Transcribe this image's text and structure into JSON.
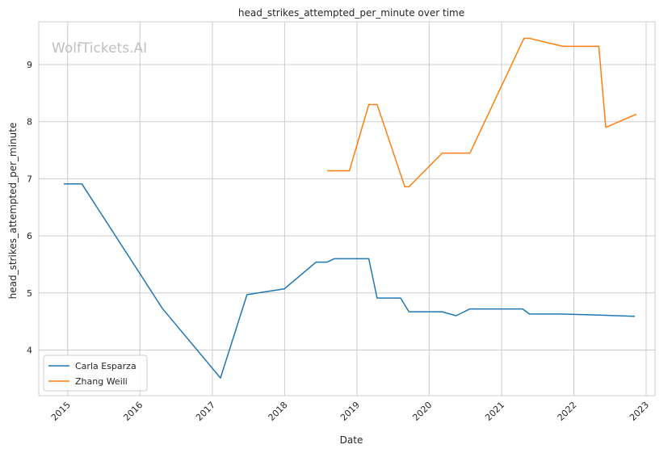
{
  "watermark": "WolfTickets.AI",
  "chart_data": {
    "type": "line",
    "title": "head_strikes_attempted_per_minute over time",
    "xlabel": "Date",
    "ylabel": "head_strikes_attempted_per_minute",
    "x_ticks": [
      "2015",
      "2016",
      "2017",
      "2018",
      "2019",
      "2020",
      "2021",
      "2022",
      "2023"
    ],
    "y_ticks": [
      4,
      5,
      6,
      7,
      8,
      9
    ],
    "xlim": [
      "2014-08-08",
      "2023-02-15"
    ],
    "ylim": [
      3.2,
      9.75
    ],
    "grid": true,
    "legend_position": "lower-left",
    "series": [
      {
        "name": "Carla Esparza",
        "color": "#1f77b4",
        "x": [
          "2014-12-12",
          "2015-03-14",
          "2016-04-23",
          "2017-02-11",
          "2017-06-25",
          "2017-12-30",
          "2018-06-09",
          "2018-08-04",
          "2018-09-08",
          "2019-03-02",
          "2019-04-13",
          "2019-08-10",
          "2019-09-21",
          "2020-03-07",
          "2020-05-16",
          "2020-07-25",
          "2021-04-17",
          "2021-05-22",
          "2021-10-30",
          "2022-05-14",
          "2022-11-05"
        ],
        "values": [
          6.91,
          6.91,
          4.73,
          3.51,
          4.97,
          5.07,
          5.54,
          5.54,
          5.6,
          5.6,
          4.91,
          4.91,
          4.67,
          4.67,
          4.6,
          4.72,
          4.72,
          4.63,
          4.63,
          4.61,
          4.59
        ]
      },
      {
        "name": "Zhang Weili",
        "color": "#ff7f0e",
        "x": [
          "2018-08-04",
          "2018-11-24",
          "2019-03-02",
          "2019-04-13",
          "2019-08-31",
          "2019-09-21",
          "2020-03-07",
          "2020-07-25",
          "2021-04-24",
          "2021-05-22",
          "2021-11-06",
          "2022-05-07",
          "2022-06-11",
          "2022-11-12"
        ],
        "values": [
          7.14,
          7.14,
          8.3,
          8.3,
          6.86,
          6.86,
          7.45,
          7.45,
          9.46,
          9.46,
          9.32,
          9.32,
          7.9,
          8.13
        ]
      }
    ]
  }
}
